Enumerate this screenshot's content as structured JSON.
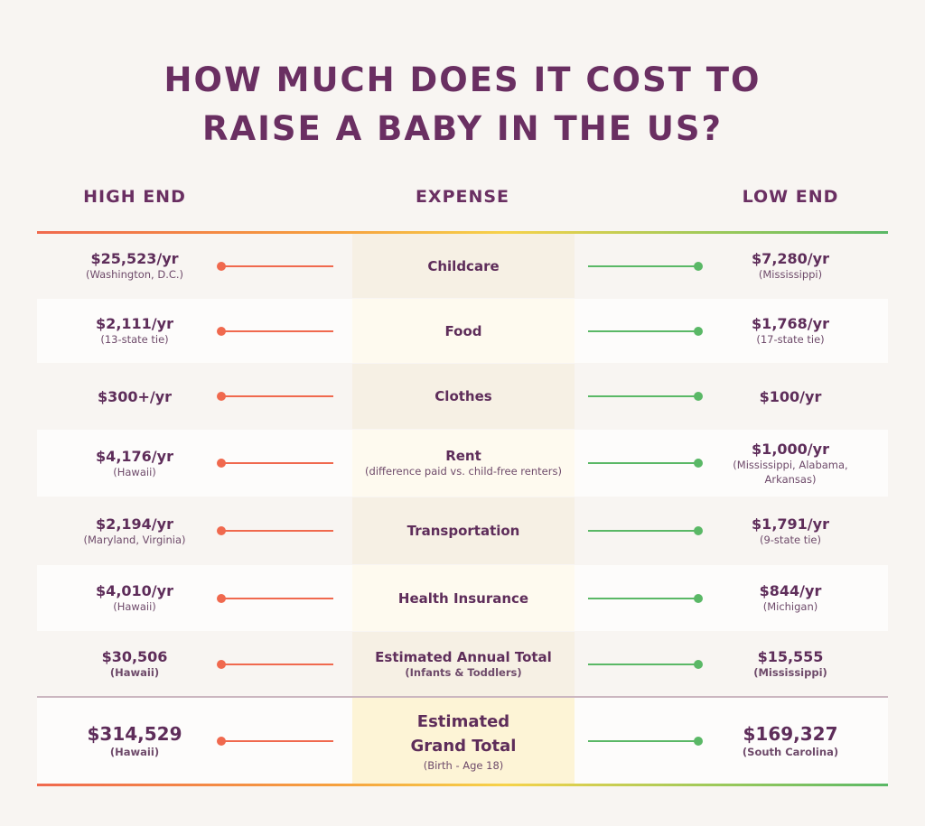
{
  "title_line1": "HOW MUCH DOES IT COST TO",
  "title_line2": "RAISE A BABY IN THE US?",
  "headers": {
    "high": "HIGH END",
    "expense": "EXPENSE",
    "low": "LOW END"
  },
  "colors": {
    "high": "#f0694e",
    "low": "#5ab866",
    "text": "#5e2d5a"
  },
  "rows": [
    {
      "expense": "Childcare",
      "expense_note": "",
      "high": "$25,523/yr",
      "high_note": "(Washington, D.C.)",
      "low": "$7,280/yr",
      "low_note": "(Mississippi)"
    },
    {
      "expense": "Food",
      "expense_note": "",
      "high": "$2,111/yr",
      "high_note": "(13-state tie)",
      "low": "$1,768/yr",
      "low_note": "(17-state tie)"
    },
    {
      "expense": "Clothes",
      "expense_note": "",
      "high": "$300+/yr",
      "high_note": "",
      "low": "$100/yr",
      "low_note": ""
    },
    {
      "expense": "Rent",
      "expense_note": "(difference paid vs. child-free renters)",
      "high": "$4,176/yr",
      "high_note": "(Hawaii)",
      "low": "$1,000/yr",
      "low_note": "(Mississippi, Alabama, Arkansas)"
    },
    {
      "expense": "Transportation",
      "expense_note": "",
      "high": "$2,194/yr",
      "high_note": "(Maryland, Virginia)",
      "low": "$1,791/yr",
      "low_note": "(9-state tie)"
    },
    {
      "expense": "Health Insurance",
      "expense_note": "",
      "high": "$4,010/yr",
      "high_note": "(Hawaii)",
      "low": "$844/yr",
      "low_note": "(Michigan)"
    },
    {
      "expense": "Estimated Annual Total",
      "expense_note": "(Infants & Toddlers)",
      "high": "$30,506",
      "high_note": "(Hawaii)",
      "low": "$15,555",
      "low_note": "(Mississippi)"
    }
  ],
  "grand": {
    "expense_line1": "Estimated",
    "expense_line2": "Grand Total",
    "expense_note": "(Birth - Age 18)",
    "high": "$314,529",
    "high_note": "(Hawaii)",
    "low": "$169,327",
    "low_note": "(South Carolina)"
  }
}
